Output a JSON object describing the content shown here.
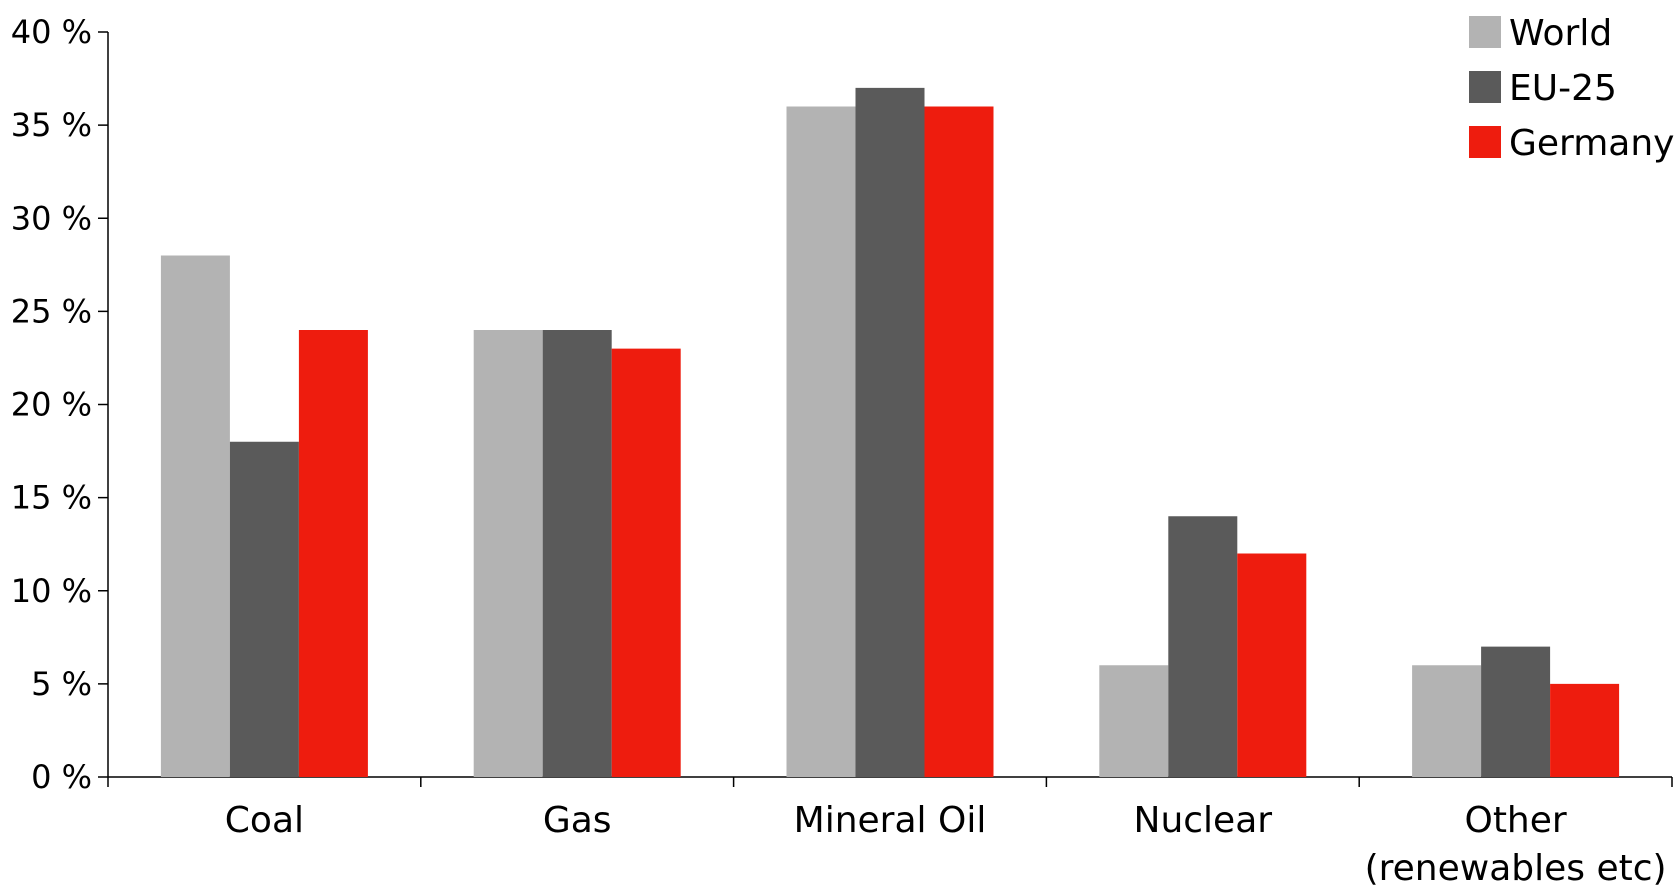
{
  "chart_data": {
    "type": "bar",
    "categories": [
      "Coal",
      "Gas",
      "Mineral Oil",
      "Nuclear",
      "Other\n(renewables etc)"
    ],
    "series": [
      {
        "name": "World",
        "color": "#b3b3b3",
        "values": [
          28,
          24,
          36,
          6,
          6
        ]
      },
      {
        "name": "EU-25",
        "color": "#5a5a5a",
        "values": [
          18,
          24,
          37,
          14,
          7
        ]
      },
      {
        "name": "Germany",
        "color": "#ee1c0e",
        "values": [
          24,
          23,
          36,
          12,
          5
        ]
      }
    ],
    "yticks": [
      "0 %",
      "5 %",
      "10 %",
      "15 %",
      "20 %",
      "25 %",
      "30 %",
      "35 %",
      "40 %"
    ],
    "ylim": [
      0,
      40
    ],
    "legend_position": "top-right",
    "grid": false
  }
}
